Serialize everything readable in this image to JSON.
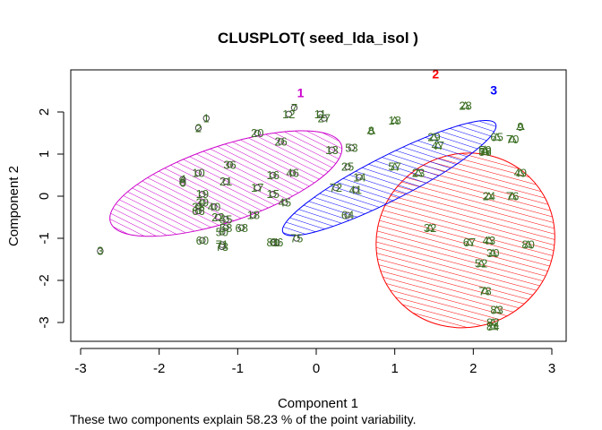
{
  "chart_data": {
    "type": "scatter",
    "subtype": "clusplot",
    "title": "CLUSPLOT( seed_lda_isol )",
    "xlabel": "Component 1",
    "ylabel": "Component 2",
    "footnote": "These two components explain 58.23 % of the point variability.",
    "xlim": [
      -3.1,
      3.2
    ],
    "ylim": [
      -3.45,
      2.5
    ],
    "xticks": [
      -3,
      -2,
      -1,
      0,
      1,
      2,
      3
    ],
    "yticks": [
      -3,
      -2,
      -1,
      0,
      1,
      2
    ],
    "xtick_labels": [
      "-3",
      "-2",
      "-1",
      "0",
      "1",
      "2",
      "3"
    ],
    "ytick_labels": [
      "-3",
      "-2",
      "-1",
      "0",
      "1",
      "2"
    ],
    "grid": false,
    "clusters": [
      {
        "label": "1",
        "color": "#cc00cc",
        "center": [
          -1.15,
          0.3
        ],
        "rx": 1.55,
        "ry": 0.9,
        "rot_deg": 18.5,
        "label_pos": [
          -0.2,
          2.35
        ],
        "shading": "hatched"
      },
      {
        "label": "2",
        "color": "#ff0000",
        "center": [
          1.9,
          -1.05
        ],
        "rx": 1.15,
        "ry": 2.05,
        "rot_deg": 30,
        "label_pos": [
          1.52,
          2.8
        ],
        "shading": "hatched"
      },
      {
        "label": "3",
        "color": "#0000ff",
        "center": [
          0.93,
          0.43
        ],
        "rx": 1.52,
        "ry": 0.52,
        "rot_deg": 27,
        "label_pos": [
          2.26,
          2.41
        ],
        "shading": "hatched"
      }
    ],
    "points": [
      {
        "id": "1",
        "x": -1.4,
        "y": 1.85
      },
      {
        "id": "2",
        "x": -1.5,
        "y": 1.62
      },
      {
        "id": "3",
        "x": -2.75,
        "y": -1.3
      },
      {
        "id": "4",
        "x": -1.7,
        "y": 0.4
      },
      {
        "id": "6",
        "x": -1.7,
        "y": 0.32
      },
      {
        "id": "7",
        "x": -0.28,
        "y": 2.1
      },
      {
        "id": "8",
        "x": 0.7,
        "y": 1.55
      },
      {
        "id": "9",
        "x": 2.6,
        "y": 1.65
      },
      {
        "id": "10",
        "x": -1.5,
        "y": 0.55
      },
      {
        "id": "11",
        "x": 0.05,
        "y": 1.95
      },
      {
        "id": "12",
        "x": -0.35,
        "y": 1.95
      },
      {
        "id": "13",
        "x": 0.2,
        "y": 1.1
      },
      {
        "id": "14",
        "x": 0.55,
        "y": 0.45
      },
      {
        "id": "15",
        "x": -0.55,
        "y": 0.05
      },
      {
        "id": "16",
        "x": -0.55,
        "y": 0.5
      },
      {
        "id": "17",
        "x": -0.75,
        "y": 0.2
      },
      {
        "id": "18",
        "x": 1.0,
        "y": 1.8
      },
      {
        "id": "18",
        "x": -0.8,
        "y": -0.45
      },
      {
        "id": "19",
        "x": -1.45,
        "y": 0.05
      },
      {
        "id": "20",
        "x": -0.75,
        "y": 1.5
      },
      {
        "id": "21",
        "x": -1.15,
        "y": 0.35
      },
      {
        "id": "22",
        "x": -1.25,
        "y": -0.5
      },
      {
        "id": "23",
        "x": 1.3,
        "y": 0.55
      },
      {
        "id": "24",
        "x": 2.2,
        "y": 0.0
      },
      {
        "id": "25",
        "x": 0.4,
        "y": 0.7
      },
      {
        "id": "26",
        "x": -0.45,
        "y": 1.3
      },
      {
        "id": "27",
        "x": 0.1,
        "y": 1.85
      },
      {
        "id": "28",
        "x": 1.9,
        "y": 2.15
      },
      {
        "id": "29",
        "x": 1.5,
        "y": 1.4
      },
      {
        "id": "30",
        "x": 2.25,
        "y": -1.35
      },
      {
        "id": "32",
        "x": 1.45,
        "y": -0.75
      },
      {
        "id": "36",
        "x": -1.1,
        "y": 0.75
      },
      {
        "id": "38",
        "x": -1.5,
        "y": -0.25
      },
      {
        "id": "39",
        "x": -1.45,
        "y": -0.15
      },
      {
        "id": "40",
        "x": -1.3,
        "y": -0.25
      },
      {
        "id": "41",
        "x": 0.5,
        "y": 0.15
      },
      {
        "id": "43",
        "x": 2.2,
        "y": -1.05
      },
      {
        "id": "45",
        "x": -0.4,
        "y": -0.15
      },
      {
        "id": "46",
        "x": -0.3,
        "y": 0.55
      },
      {
        "id": "47",
        "x": 1.55,
        "y": 1.2
      },
      {
        "id": "49",
        "x": 2.6,
        "y": 0.55
      },
      {
        "id": "50",
        "x": -1.2,
        "y": -0.85
      },
      {
        "id": "52",
        "x": 2.1,
        "y": -1.6
      },
      {
        "id": "53",
        "x": 0.45,
        "y": 1.15
      },
      {
        "id": "55",
        "x": -1.15,
        "y": -0.55
      },
      {
        "id": "56",
        "x": 2.15,
        "y": 1.05
      },
      {
        "id": "57",
        "x": 1.0,
        "y": 0.7
      },
      {
        "id": "58",
        "x": -1.15,
        "y": -0.75
      },
      {
        "id": "59",
        "x": 2.15,
        "y": 1.1
      },
      {
        "id": "60",
        "x": -1.45,
        "y": -1.05
      },
      {
        "id": "64",
        "x": 0.4,
        "y": -0.45
      },
      {
        "id": "65",
        "x": 2.3,
        "y": 1.4
      },
      {
        "id": "66",
        "x": -1.5,
        "y": -0.35
      },
      {
        "id": "67",
        "x": 1.95,
        "y": -1.1
      },
      {
        "id": "68",
        "x": -0.95,
        "y": -0.75
      },
      {
        "id": "70",
        "x": 2.5,
        "y": 1.35
      },
      {
        "id": "71",
        "x": -1.2,
        "y": -1.15
      },
      {
        "id": "72",
        "x": 0.25,
        "y": 0.2
      },
      {
        "id": "73",
        "x": -1.2,
        "y": -1.2
      },
      {
        "id": "75",
        "x": -0.25,
        "y": -1.0
      },
      {
        "id": "76",
        "x": 2.5,
        "y": 0.0
      },
      {
        "id": "78",
        "x": 2.15,
        "y": -2.25
      },
      {
        "id": "80",
        "x": 2.7,
        "y": -1.15
      },
      {
        "id": "81",
        "x": -0.55,
        "y": -1.1
      },
      {
        "id": "82",
        "x": 2.25,
        "y": -3.0
      },
      {
        "id": "83",
        "x": 2.3,
        "y": -2.7
      },
      {
        "id": "84",
        "x": 2.25,
        "y": -3.1
      },
      {
        "id": "86",
        "x": -0.5,
        "y": -1.1
      }
    ]
  }
}
